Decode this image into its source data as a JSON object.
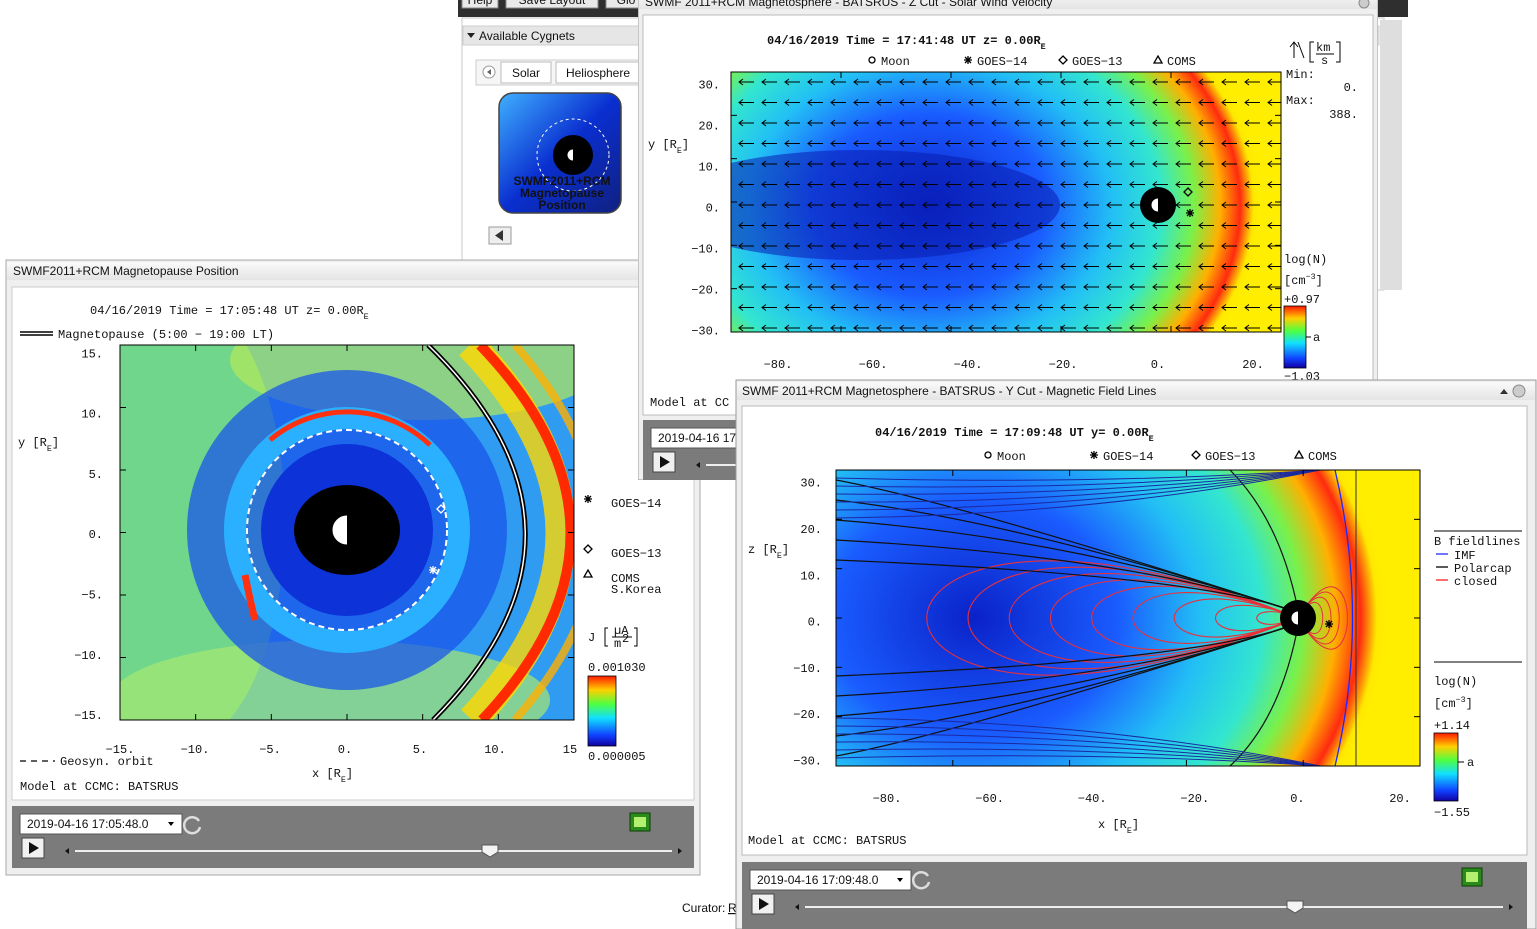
{
  "app": {
    "toolbar": [
      "Help",
      "Save Layout",
      "Glo"
    ],
    "cygnets_title": "Available Cygnets",
    "tabs": [
      "Solar",
      "Heliosphere"
    ],
    "icon_label": [
      "SWMF2011+RCM",
      "Magnetopause",
      "Position"
    ],
    "curator": "Curator:",
    "curator_link": "R"
  },
  "magnetopause": {
    "window_title": "SWMF2011+RCM Magnetopause Position",
    "plot_title": [
      "04/16/2019  Time = 17:05:48 UT  z= 0.00R",
      "E"
    ],
    "magnetopause_legend": "Magnetopause (5:00 − 19:00 LT)",
    "y_label": [
      "y [R",
      "E",
      "]"
    ],
    "yticks": [
      "15.",
      "10.",
      "5.",
      "0.",
      "−5.",
      "−10.",
      "−15."
    ],
    "xticks": [
      "−15.",
      "−10.",
      "−5.",
      "0.",
      "5.",
      "10.",
      "15"
    ],
    "x_label": [
      "x [R",
      "E",
      "]"
    ],
    "geosyn_legend": "Geosyn. orbit",
    "footer": "Model at CCMC: BATSRUS",
    "satellites": [
      "GOES−14",
      "GOES−13",
      "COMS"
    ],
    "coms_note": "S.Korea",
    "colorbar_label": "J",
    "colorbar_unit": [
      "µA",
      "m",
      "2"
    ],
    "colorbar_max": "0.001030",
    "colorbar_min": "0.000005",
    "time": "2019-04-16 17:05:48.0"
  },
  "z_cut": {
    "window_title": "SWMF 2011+RCM Magnetosphere - BATSRUS - Z Cut - Solar Wind Velocity",
    "plot_title": [
      "04/16/2019  Time = 17:41:48 UT  z= 0.00R",
      "E"
    ],
    "legend": [
      "Moon",
      "GOES−14",
      "GOES−13",
      "COMS"
    ],
    "y_label": [
      "y [R",
      "E",
      "]"
    ],
    "yticks": [
      "30.",
      "20.",
      "10.",
      "0.",
      "−10.",
      "−20.",
      "−30."
    ],
    "xticks": [
      "−80.",
      "−60.",
      "−40.",
      "−20.",
      "0.",
      "20."
    ],
    "vector_unit": [
      "km",
      "s"
    ],
    "min_label": "Min:",
    "min_value": "0.",
    "max_label": "Max:",
    "max_value": "388.",
    "colorbar_label": "log(N)",
    "colorbar_unit": [
      "[cm",
      "−3",
      "]"
    ],
    "colorbar_max": "+0.97",
    "colorbar_mid": "a",
    "colorbar_min": "−1.03",
    "footer": "Model at CC",
    "time": "2019-04-16 17"
  },
  "y_cut": {
    "window_title": "SWMF 2011+RCM Magnetosphere - BATSRUS - Y Cut - Magnetic Field Lines",
    "plot_title": [
      "04/16/2019  Time = 17:09:48 UT  y= 0.00R",
      "E"
    ],
    "legend": [
      "Moon",
      "GOES−14",
      "GOES−13",
      "COMS"
    ],
    "y_label": [
      "z [R",
      "E",
      "]"
    ],
    "yticks": [
      "30.",
      "20.",
      "10.",
      "0.",
      "−10.",
      "−20.",
      "−30."
    ],
    "xticks": [
      "−80.",
      "−60.",
      "−40.",
      "−20.",
      "0.",
      "20."
    ],
    "x_label": [
      "x [R",
      "E",
      "]"
    ],
    "fieldlines_title": "B fieldlines",
    "fieldlines": [
      "IMF",
      "Polarcap",
      "closed"
    ],
    "colorbar_label": "log(N)",
    "colorbar_unit": [
      "[cm",
      "−3",
      "]"
    ],
    "colorbar_max": "+1.14",
    "colorbar_mid": "a",
    "colorbar_min": "−1.55",
    "footer": "Model at CCMC: BATSRUS",
    "time": "2019-04-16 17:09:48.0"
  }
}
